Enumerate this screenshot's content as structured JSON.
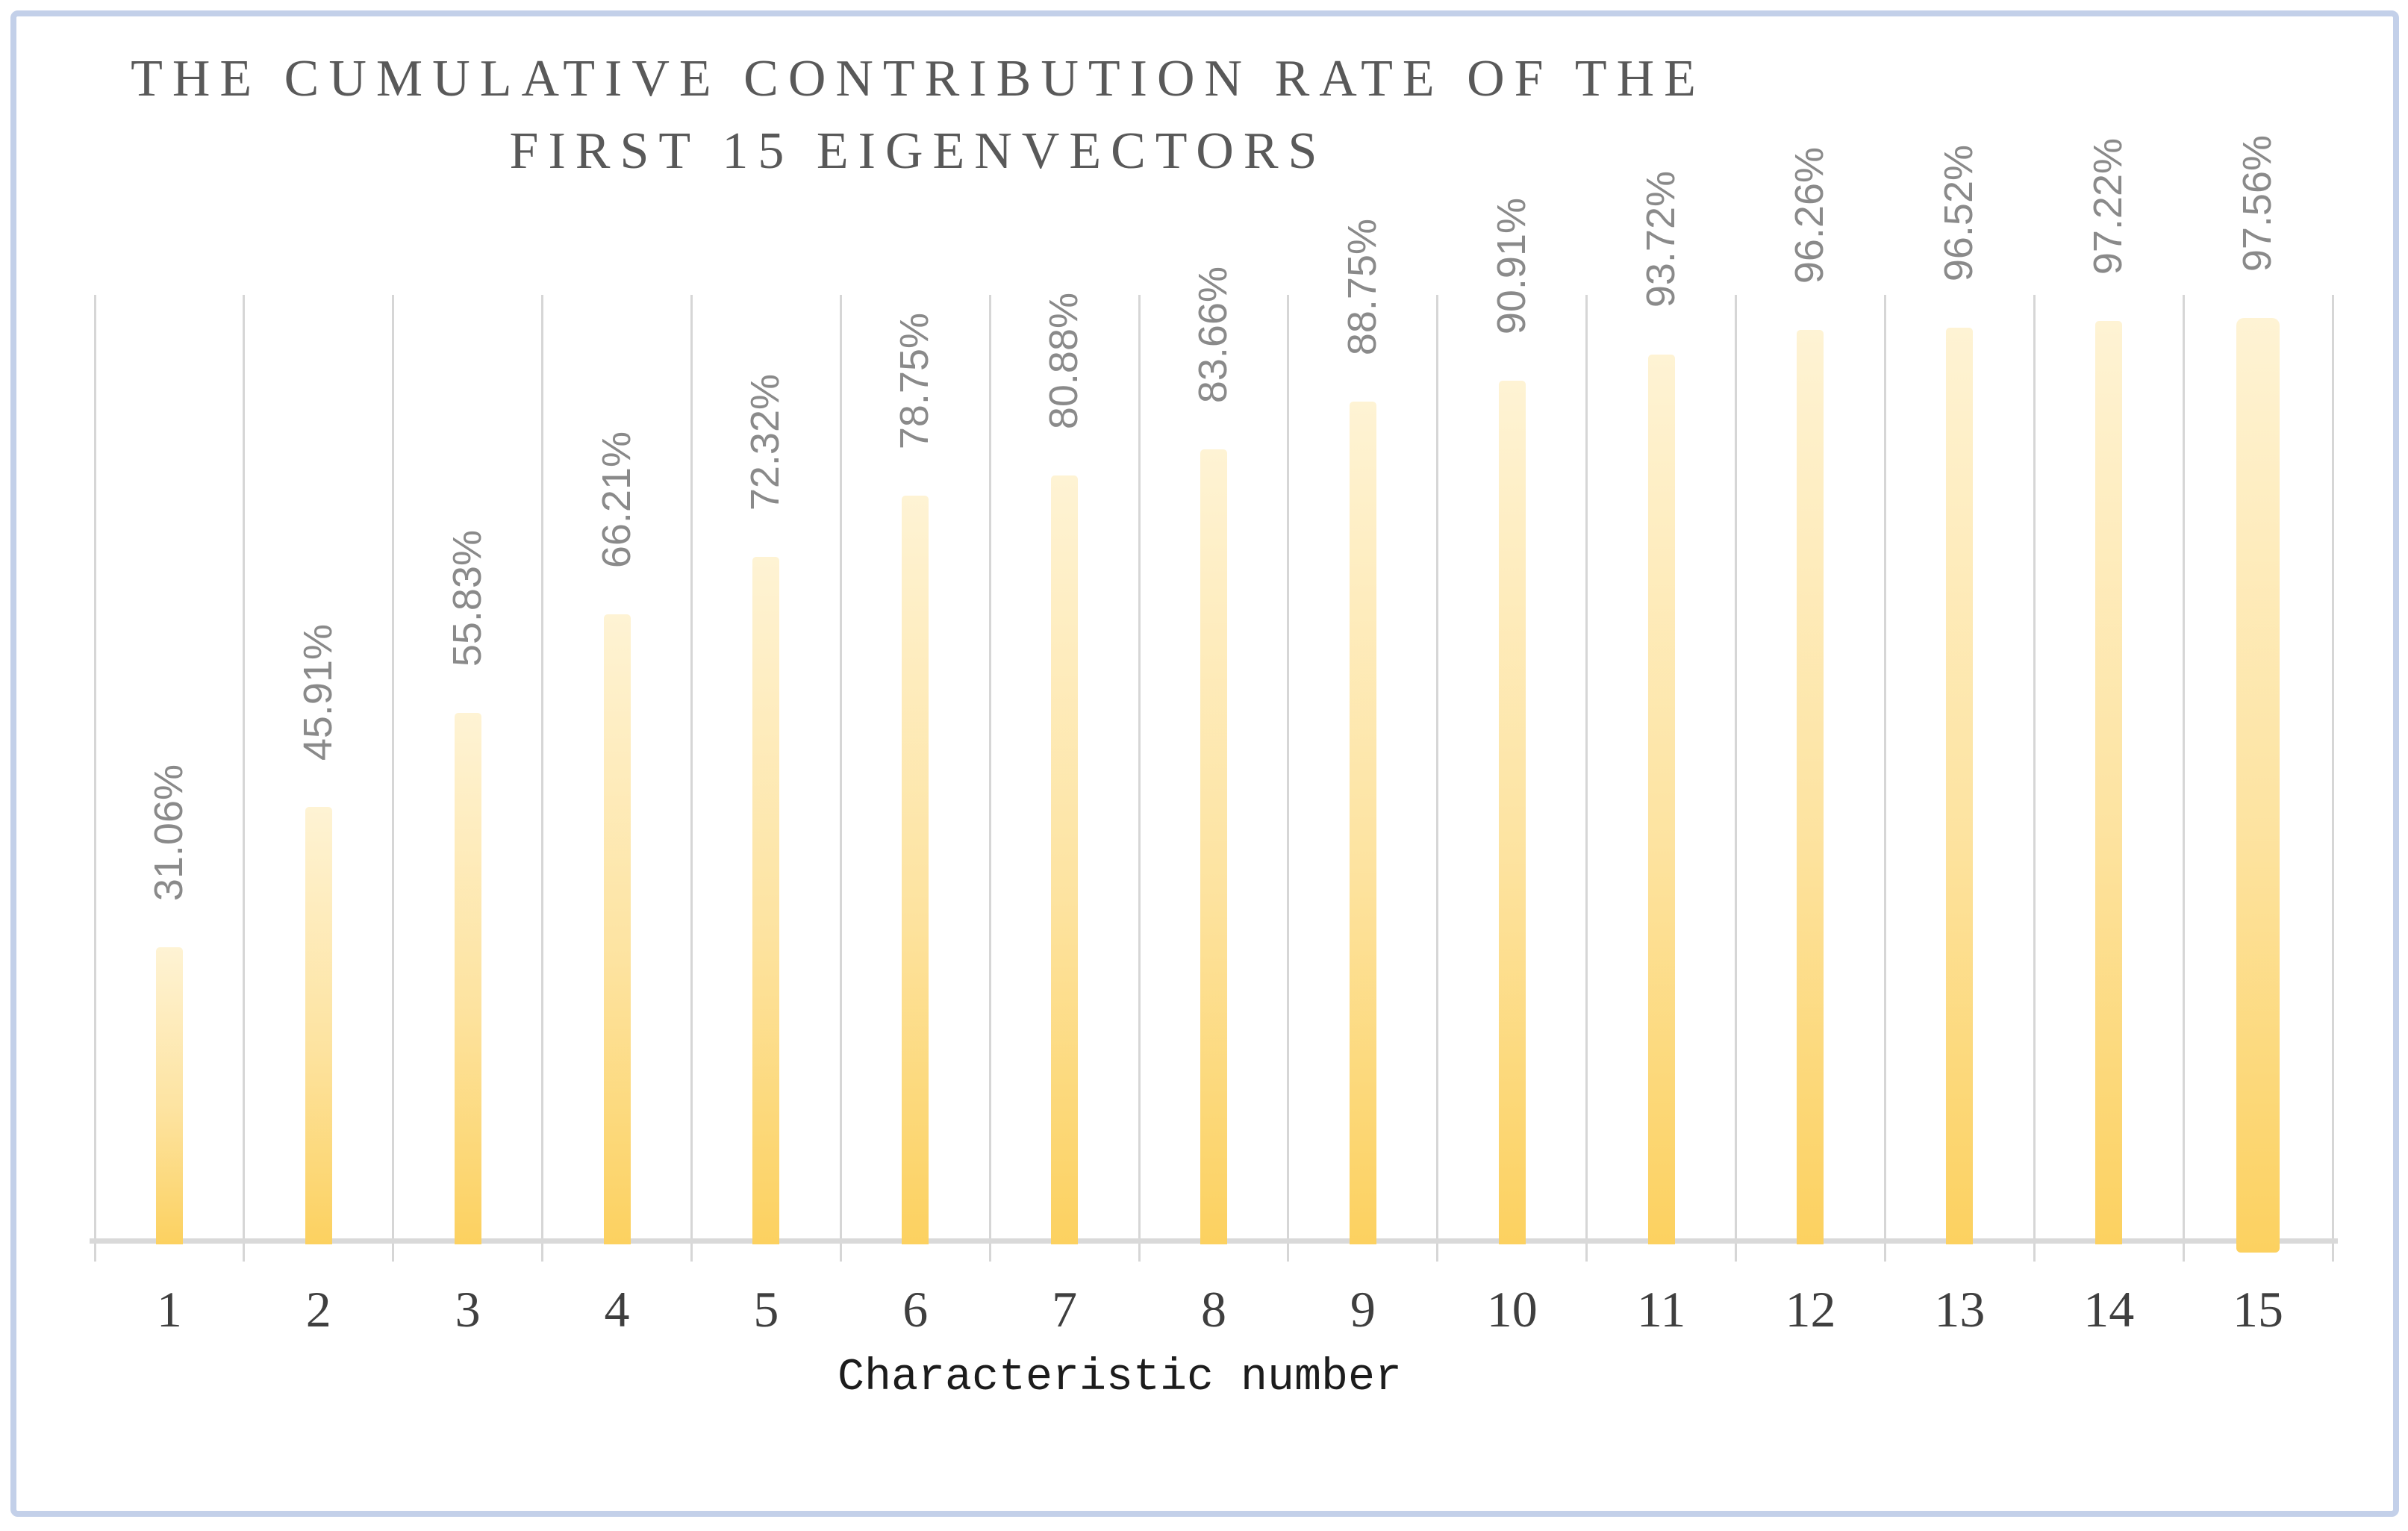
{
  "chart_data": {
    "type": "bar",
    "title": "THE CUMULATIVE CONTRIBUTION RATE OF THE FIRST 15 EIGENVECTORS",
    "title_lines": [
      "THE CUMULATIVE CONTRIBUTION RATE OF THE",
      "FIRST 15 EIGENVECTORS"
    ],
    "xlabel": "Characteristic number",
    "ylabel": "",
    "categories": [
      "1",
      "2",
      "3",
      "4",
      "5",
      "6",
      "7",
      "8",
      "9",
      "10",
      "11",
      "12",
      "13",
      "14",
      "15"
    ],
    "values": [
      31.06,
      45.91,
      55.83,
      66.21,
      72.32,
      78.75,
      80.88,
      83.66,
      88.75,
      90.91,
      93.72,
      96.26,
      96.52,
      97.22,
      97.56
    ],
    "data_labels": [
      "31.06%",
      "45.91%",
      "55.83%",
      "66.21%",
      "72.32%",
      "78.75%",
      "80.88%",
      "83.66%",
      "88.75%",
      "90.91%",
      "93.72%",
      "96.26%",
      "96.52%",
      "97.22%",
      "97.56%"
    ],
    "ylim": [
      0,
      100
    ],
    "grid": "vertical-only",
    "legend": "none",
    "data_label_rotation": "90-ccw",
    "colors": {
      "bar_gradient_top": "#FEF3D4",
      "bar_gradient_bottom": "#FCD160",
      "gridline": "#D6D6D6",
      "axis_line": "#D9D9D9",
      "data_label": "#8A8A8A",
      "tick_label": "#3F3F3F",
      "title": "#595959",
      "axis_title": "#1C1C1C",
      "frame_border": "#C3D0E9"
    }
  }
}
